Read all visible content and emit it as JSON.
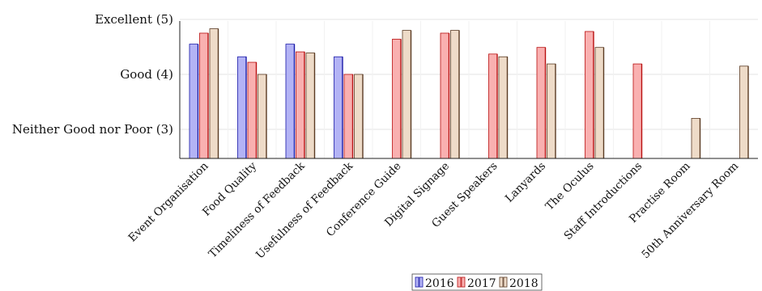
{
  "chart_data": {
    "type": "bar",
    "title": "",
    "xlabel": "",
    "ylabel": "",
    "ylim": [
      2.5,
      5
    ],
    "categories": [
      "Event Organisation",
      "Food Quality",
      "Timeliness of Feedback",
      "Usefulness of Feedback",
      "Conference Guide",
      "Digital Signage",
      "Guest Speakers",
      "Lanyards",
      "The Oculus",
      "Staff Introductions",
      "Practise Room",
      "50th Anniversary Room"
    ],
    "y_ticks": [
      {
        "value": 3,
        "label": "Neither Good nor Poor (3)"
      },
      {
        "value": 4,
        "label": "Good (4)"
      },
      {
        "value": 5,
        "label": "Excellent (5)"
      }
    ],
    "grid": true,
    "legend_position": "bottom",
    "series": [
      {
        "name": "2016",
        "color_fill": "#b3b3f5",
        "color_stroke": "#1a1aa8",
        "values": [
          4.55,
          4.32,
          4.55,
          4.32,
          null,
          null,
          null,
          null,
          null,
          null,
          null,
          null
        ]
      },
      {
        "name": "2017",
        "color_fill": "#f9b0b0",
        "color_stroke": "#b80f0f",
        "values": [
          4.75,
          4.22,
          4.41,
          4.0,
          4.64,
          4.75,
          4.37,
          4.49,
          4.78,
          4.19,
          null,
          null
        ]
      },
      {
        "name": "2018",
        "color_fill": "#eedbc8",
        "color_stroke": "#5a3a22",
        "values": [
          4.83,
          4.0,
          4.39,
          4.0,
          4.8,
          4.8,
          4.32,
          4.19,
          4.49,
          null,
          3.2,
          4.15
        ]
      }
    ]
  }
}
